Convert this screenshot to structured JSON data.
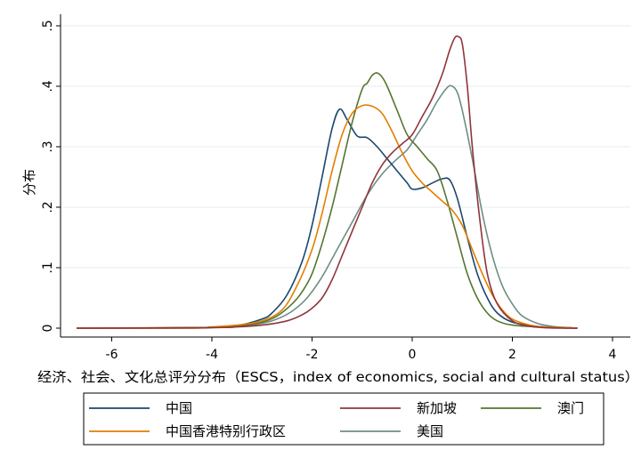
{
  "chart_data": {
    "type": "line",
    "xlabel": "经济、社会、文化总评分分布（ESCS，index of economics, social and cultural status）",
    "ylabel": "分布",
    "xlim": [
      -6.8,
      4.2
    ],
    "ylim": [
      0,
      0.5
    ],
    "xticks": [
      -6,
      -4,
      -2,
      0,
      2,
      4
    ],
    "xtick_labels": [
      "-6",
      "-4",
      "-2",
      "0",
      "2",
      "4"
    ],
    "yticks": [
      0,
      0.1,
      0.2,
      0.3,
      0.4,
      0.5
    ],
    "ytick_labels": [
      "0",
      ".1",
      ".2",
      ".3",
      ".4",
      ".5"
    ],
    "grid": "horizontal",
    "legend_position": "bottom",
    "series": [
      {
        "name": "中国",
        "color": "#1a476f",
        "x": [
          -6.7,
          -4.5,
          -4,
          -3.5,
          -3,
          -2.8,
          -2.5,
          -2.2,
          -2,
          -1.8,
          -1.6,
          -1.45,
          -1.3,
          -1.1,
          -0.9,
          -0.7,
          -0.5,
          -0.3,
          -0.1,
          0,
          0.2,
          0.4,
          0.6,
          0.75,
          0.9,
          1.1,
          1.3,
          1.5,
          1.7,
          2,
          2.5,
          3,
          3.3
        ],
        "y": [
          0,
          0,
          0.001,
          0.004,
          0.015,
          0.025,
          0.055,
          0.11,
          0.17,
          0.25,
          0.33,
          0.362,
          0.345,
          0.318,
          0.315,
          0.3,
          0.28,
          0.26,
          0.24,
          0.23,
          0.232,
          0.24,
          0.247,
          0.245,
          0.215,
          0.15,
          0.09,
          0.05,
          0.025,
          0.01,
          0.003,
          0.001,
          0
        ]
      },
      {
        "name": "新加坡",
        "color": "#90353b",
        "x": [
          -6.7,
          -4,
          -3.5,
          -3,
          -2.5,
          -2.2,
          -2,
          -1.8,
          -1.6,
          -1.4,
          -1.2,
          -1,
          -0.8,
          -0.6,
          -0.4,
          -0.2,
          0,
          0.2,
          0.4,
          0.6,
          0.75,
          0.85,
          0.92,
          1,
          1.1,
          1.2,
          1.35,
          1.5,
          1.7,
          2,
          2.3,
          2.6,
          3,
          3.3
        ],
        "y": [
          0,
          0.001,
          0.002,
          0.005,
          0.012,
          0.022,
          0.033,
          0.05,
          0.08,
          0.12,
          0.16,
          0.2,
          0.24,
          0.27,
          0.29,
          0.305,
          0.32,
          0.35,
          0.38,
          0.42,
          0.46,
          0.48,
          0.482,
          0.47,
          0.4,
          0.3,
          0.18,
          0.09,
          0.04,
          0.012,
          0.004,
          0.001,
          0,
          0
        ]
      },
      {
        "name": "澳门",
        "color": "#55752f",
        "x": [
          -6.7,
          -4,
          -3.5,
          -3,
          -2.7,
          -2.4,
          -2.2,
          -2,
          -1.8,
          -1.6,
          -1.4,
          -1.2,
          -1,
          -0.9,
          -0.8,
          -0.7,
          -0.6,
          -0.5,
          -0.3,
          -0.1,
          0.1,
          0.3,
          0.5,
          0.7,
          0.9,
          1.1,
          1.3,
          1.5,
          1.7,
          2,
          2.5,
          3,
          3.3
        ],
        "y": [
          0,
          0.001,
          0.003,
          0.01,
          0.02,
          0.04,
          0.06,
          0.09,
          0.14,
          0.2,
          0.27,
          0.34,
          0.395,
          0.405,
          0.418,
          0.422,
          0.415,
          0.4,
          0.36,
          0.32,
          0.3,
          0.28,
          0.26,
          0.21,
          0.15,
          0.09,
          0.05,
          0.025,
          0.012,
          0.005,
          0.002,
          0.001,
          0
        ]
      },
      {
        "name": "中国香港特别行政区",
        "color": "#e37e00",
        "x": [
          -6.7,
          -4.5,
          -4,
          -3.5,
          -3,
          -2.6,
          -2.3,
          -2,
          -1.8,
          -1.6,
          -1.4,
          -1.2,
          -1,
          -0.8,
          -0.6,
          -0.4,
          -0.2,
          0,
          0.2,
          0.4,
          0.6,
          0.8,
          1,
          1.2,
          1.4,
          1.6,
          1.8,
          2,
          2.3,
          2.6,
          3,
          3.3
        ],
        "y": [
          0,
          0,
          0.002,
          0.005,
          0.012,
          0.03,
          0.07,
          0.13,
          0.19,
          0.26,
          0.32,
          0.355,
          0.368,
          0.367,
          0.355,
          0.325,
          0.29,
          0.26,
          0.24,
          0.225,
          0.21,
          0.195,
          0.17,
          0.13,
          0.09,
          0.055,
          0.03,
          0.015,
          0.006,
          0.002,
          0.001,
          0
        ]
      },
      {
        "name": "美国",
        "color": "#6e8e84",
        "x": [
          -6.7,
          -4,
          -3.5,
          -3,
          -2.7,
          -2.4,
          -2.1,
          -1.8,
          -1.5,
          -1.2,
          -0.9,
          -0.6,
          -0.3,
          -0.1,
          0.1,
          0.3,
          0.5,
          0.7,
          0.8,
          0.9,
          1,
          1.2,
          1.4,
          1.6,
          1.8,
          2,
          2.2,
          2.5,
          2.8,
          3.1,
          3.3
        ],
        "y": [
          0,
          0.001,
          0.003,
          0.008,
          0.015,
          0.028,
          0.05,
          0.085,
          0.13,
          0.175,
          0.22,
          0.255,
          0.28,
          0.295,
          0.32,
          0.345,
          0.375,
          0.398,
          0.4,
          0.39,
          0.36,
          0.28,
          0.19,
          0.12,
          0.07,
          0.04,
          0.02,
          0.008,
          0.003,
          0.001,
          0
        ]
      }
    ]
  }
}
